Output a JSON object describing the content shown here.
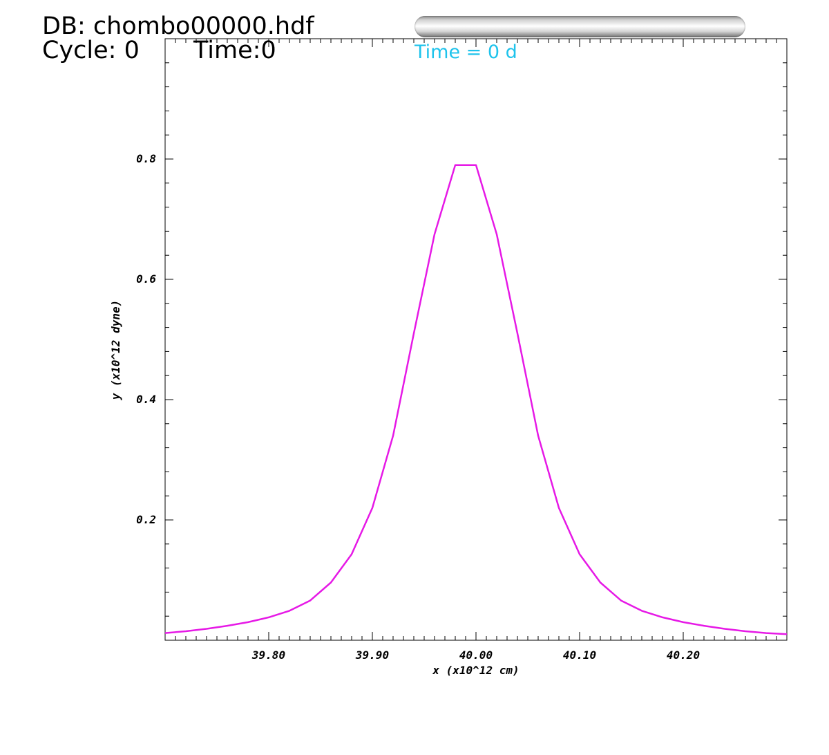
{
  "header": {
    "db_label": "DB: chombo00000.hdf",
    "cycle_label": "Cycle: 0",
    "time_label": "Time:0"
  },
  "annotation": {
    "time_text": "Time = 0 d",
    "color": "#1ec3ec"
  },
  "chart_data": {
    "type": "line",
    "xlabel": "x (x10^12 cm)",
    "ylabel": "y (x10^12 dyne)",
    "xlim": [
      39.7,
      40.3
    ],
    "ylim": [
      0.0,
      1.0
    ],
    "x_ticks": [
      39.8,
      39.9,
      40.0,
      40.1,
      40.2
    ],
    "x_tick_labels": [
      "39.80",
      "39.90",
      "40.00",
      "40.10",
      "40.20"
    ],
    "y_ticks": [
      0.2,
      0.4,
      0.6,
      0.8
    ],
    "y_tick_labels": [
      "0.2",
      "0.4",
      "0.6",
      "0.8"
    ],
    "grid": false,
    "series": [
      {
        "color": "#e619e6",
        "x": [
          39.7,
          39.72,
          39.74,
          39.76,
          39.78,
          39.8,
          39.82,
          39.84,
          39.86,
          39.88,
          39.9,
          39.92,
          39.94,
          39.96,
          39.98,
          40.0,
          40.02,
          40.04,
          40.06,
          40.08,
          40.1,
          40.12,
          40.14,
          40.16,
          40.18,
          40.2,
          40.22,
          40.24,
          40.26,
          40.28,
          40.3
        ],
        "y": [
          0.012,
          0.015,
          0.019,
          0.024,
          0.03,
          0.038,
          0.049,
          0.066,
          0.096,
          0.143,
          0.22,
          0.34,
          0.51,
          0.675,
          0.79,
          0.79,
          0.675,
          0.51,
          0.34,
          0.22,
          0.143,
          0.096,
          0.066,
          0.049,
          0.038,
          0.03,
          0.024,
          0.019,
          0.015,
          0.012,
          0.01
        ]
      }
    ]
  }
}
